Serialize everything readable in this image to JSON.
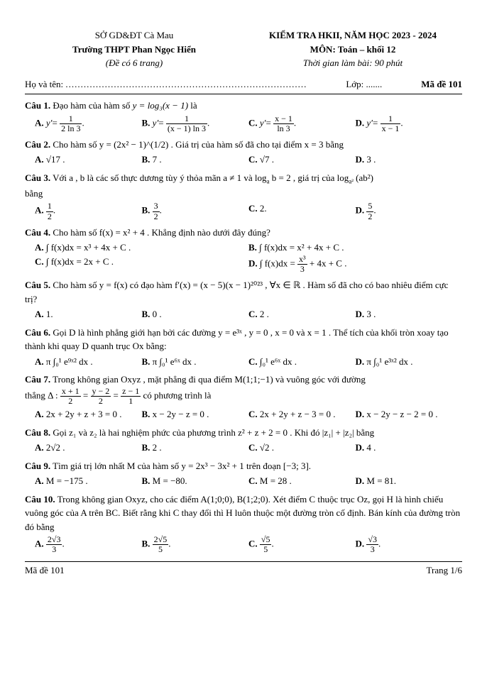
{
  "header": {
    "dept": "SỞ GD&ĐT Cà Mau",
    "school": "Trường THPT Phan Ngọc Hiển",
    "pages": "(Đề  có  6 trang)",
    "exam": "KIỂM TRA HKII, NĂM HỌC 2023 - 2024",
    "subject": "MÔN: Toán – khối 12",
    "time": "Thời gian làm bài: 90 phút"
  },
  "namerow": {
    "name_label": "Họ và tên: ",
    "dots": "................................................................................",
    "class_label": "Lớp: .......",
    "code_label": "Mã đề 101"
  },
  "q1": {
    "text": "Đạo hàm của hàm số ",
    "expr": "y = log₃(x − 1)",
    "tail": "  là",
    "A": "y′ =",
    "An": "1",
    "Ad": "2 ln 3",
    "At": ".",
    "Bn": "1",
    "Bd": "(x − 1) ln 3",
    "Cn": "x − 1",
    "Cd": "ln 3",
    "Dn": "1",
    "Dd": "x − 1"
  },
  "q2": {
    "text": "Cho hàm số  y = (2x² − 1)^(1/2) . Giá trị của hàm số đã cho tại điểm  x = 3  bằng",
    "A": "√17 .",
    "B": "7 .",
    "C": "√7 .",
    "D": "3 ."
  },
  "q3": {
    "text1": "Với  a ,  b  là các số thực dương tùy ý thỏa mãn  a ≠ 1  và  log",
    "suba": "a",
    "text2": "b = 2 , giá trị của  log",
    "suba2": "a²",
    "text3": "(ab²)",
    "tail": "bằng",
    "An": "1",
    "Ad": "2",
    "Bn": "3",
    "Bd": "2",
    "C": "2.",
    "Dn": "5",
    "Dd": "2"
  },
  "q4": {
    "text": "Cho hàm số  f(x) = x² + 4 . Khẳng định nào dưới đây đúng?",
    "A": "∫ f(x)dx = x³ + 4x + C .",
    "B": "∫ f(x)dx = x² + 4x + C .",
    "C": "∫ f(x)dx = 2x + C .",
    "D1": "∫ f(x)dx = ",
    "Dn": "x³",
    "Dd": "3",
    "D2": " + 4x + C ."
  },
  "q5": {
    "text": "Cho hàm số  y = f(x)  có đạo hàm  f′(x) = (x − 5)(x − 1)²⁰²³ , ∀x ∈ ℝ . Hàm số đã cho có bao nhiêu điểm cực trị?",
    "A": "1.",
    "B": "0 .",
    "C": "2 .",
    "D": "3 ."
  },
  "q6": {
    "text": "Gọi  D  là hình phẳng giới hạn bởi các đường  y = e³ˣ ,  y = 0 ,  x = 0  và  x = 1 . Thể tích của khối tròn xoay tạo thành khi quay  D  quanh trục  Ox  bằng:",
    "A": "π ∫₀¹ e⁹ˣ² dx .",
    "B": "π ∫₀¹ e⁶ˣ dx .",
    "C": "∫₀¹ e⁶ˣ dx .",
    "D": "π ∫₀¹ e³ˣ² dx ."
  },
  "q7": {
    "text1": "Trong không gian  Oxyz , mặt phẳng đi qua điểm  M(1;1;−1)  và vuông góc với đường",
    "text2": "thẳng  Δ : ",
    "fn1n": "x + 1",
    "fn1d": "2",
    "fn2n": "y − 2",
    "fn2d": "2",
    "fn3n": "z − 1",
    "fn3d": "1",
    "text3": "  có phương trình là",
    "A": "2x + 2y + z + 3 = 0 .",
    "B": "x − 2y − z = 0 .",
    "C": "2x + 2y + z − 3 = 0 .",
    "D": "x − 2y − z − 2 = 0 ."
  },
  "q8": {
    "text": "Gọi  z₁  và  z₂  là hai nghiệm phức của phương trình  z² + z + 2 = 0 . Khi đó  |z₁| + |z₂|  bằng",
    "A": "2√2 .",
    "B": "2 .",
    "C": "√2 .",
    "D": "4 ."
  },
  "q9": {
    "text": "Tìm giá trị lớn nhất M của hàm số  y = 2x³ − 3x² + 1  trên đoạn  [−3; 3].",
    "A": "M = −175 .",
    "B": "M = −80.",
    "C": "M = 28 .",
    "D": "M = 81."
  },
  "q10": {
    "text": "Trong không gian  Oxyz,  cho các điểm  A(1;0;0),  B(1;2;0). Xét điểm  C  thuộc trục  Oz,  gọi  H  là hình chiếu vuông góc của  A  trên  BC.  Biết rằng khi  C  thay đổi thì  H  luôn thuộc một đường tròn cố định. Bán kính của đường tròn đó bằng",
    "An": "2√3",
    "Ad": "3",
    "Bn": "2√5",
    "Bd": "5",
    "Cn": "√5",
    "Cd": "5",
    "Dn": "√3",
    "Dd": "3"
  },
  "footer": {
    "left": "Mã đề 101",
    "right": "Trang 1/6"
  }
}
